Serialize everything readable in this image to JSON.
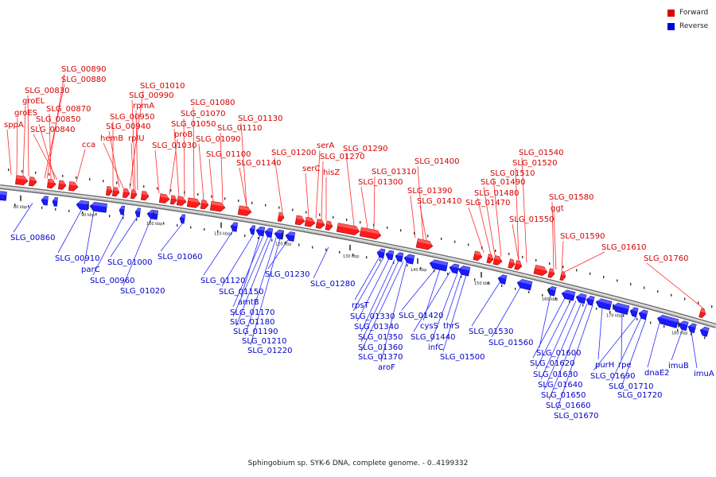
{
  "title": "Sphingobium sp. SYK-6 DNA, complete genome. - 0..4199332",
  "legend": [
    {
      "label": "Forward",
      "color": "#e00000"
    },
    {
      "label": "Reverse",
      "color": "#0000e0"
    }
  ],
  "colors": {
    "forward": "#ff1a1a",
    "reverse": "#1a1aff",
    "backbone": "#9a9a9a"
  },
  "ticks": [
    "80 kbp",
    "90 kbp",
    "100 kbp",
    "110 kbp",
    "120 kbp",
    "130 kbp",
    "140 kbp",
    "150 kbp",
    "160 kbp",
    "170 kbp",
    "180 kbp"
  ],
  "forward_labels": [
    "sppA",
    "groES",
    "groEL",
    "SLG_00830",
    "SLG_00890",
    "SLG_00880",
    "SLG_00870",
    "SLG_00850",
    "SLG_00840",
    "cca",
    "SLG_01010",
    "SLG_00990",
    "rpmA",
    "SLG_00950",
    "SLG_00940",
    "hemB",
    "rplU",
    "SLG_01030",
    "proB",
    "SLG_01050",
    "SLG_01070",
    "SLG_01080",
    "SLG_01090",
    "SLG_01100",
    "SLG_01110",
    "SLG_01130",
    "SLG_01140",
    "SLG_01200",
    "serA",
    "SLG_01270",
    "serC",
    "hisZ",
    "SLG_01290",
    "SLG_01310",
    "SLG_01300",
    "SLG_01400",
    "SLG_01390",
    "SLG_01410",
    "SLG_01540",
    "SLG_01520",
    "SLG_01510",
    "SLG_01490",
    "SLG_01480",
    "SLG_01470",
    "SLG_01550",
    "SLG_01580",
    "ggt",
    "SLG_01590",
    "SLG_01610",
    "SLG_01760"
  ],
  "reverse_labels": [
    "SLG_00860",
    "SLG_00910",
    "parC",
    "SLG_00960",
    "SLG_01000",
    "SLG_01020",
    "SLG_01060",
    "SLG_01120",
    "SLG_01150",
    "amtB",
    "SLG_01170",
    "SLG_01180",
    "SLG_01190",
    "SLG_01210",
    "SLG_01220",
    "SLG_01230",
    "SLG_01280",
    "rpsT",
    "SLG_01330",
    "SLG_01340",
    "SLG_01350",
    "SLG_01360",
    "SLG_01370",
    "aroF",
    "SLG_01420",
    "cysS",
    "SLG_01440",
    "infC",
    "thrS",
    "SLG_01500",
    "SLG_01530",
    "SLG_01560",
    "SLG_01600",
    "SLG_01620",
    "SLG_01630",
    "SLG_01640",
    "SLG_01650",
    "SLG_01660",
    "SLG_01670",
    "purH",
    "rpe",
    "SLG_01690",
    "SLG_01710",
    "SLG_01720",
    "dnaE2",
    "imuB",
    "imuA"
  ]
}
